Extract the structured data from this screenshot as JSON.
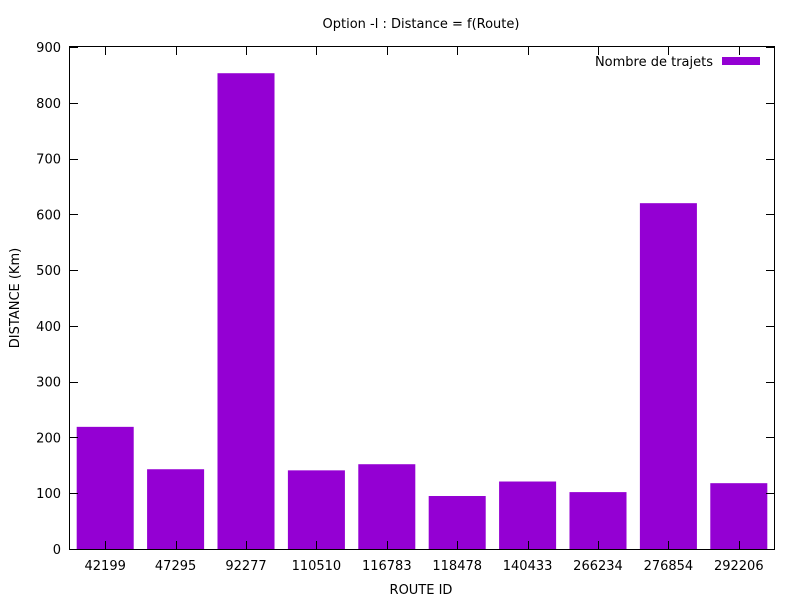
{
  "chart_data": {
    "type": "bar",
    "title": "Option -l : Distance = f(Route)",
    "xlabel": "ROUTE ID",
    "ylabel": "DISTANCE (Km)",
    "categories": [
      "42199",
      "47295",
      "92277",
      "110510",
      "116783",
      "118478",
      "140433",
      "266234",
      "276854",
      "292206"
    ],
    "series": [
      {
        "name": "Nombre de trajets",
        "values": [
          219,
          143,
          853,
          141,
          152,
          95,
          121,
          102,
          620,
          118
        ],
        "color": "#9400d3"
      }
    ],
    "ylim": [
      0,
      900
    ],
    "yticks": [
      0,
      100,
      200,
      300,
      400,
      500,
      600,
      700,
      800,
      900
    ],
    "grid": false,
    "legend_position": "top-right"
  }
}
